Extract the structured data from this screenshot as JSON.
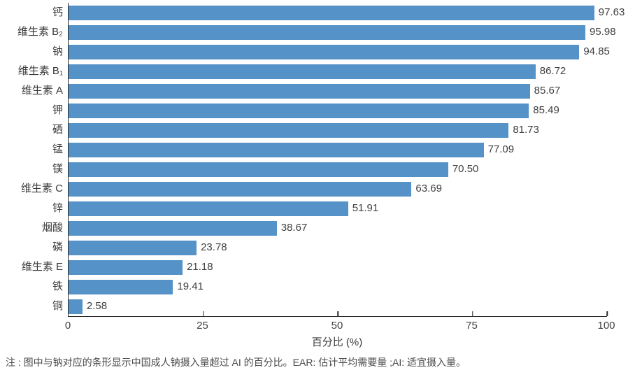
{
  "chart_data": {
    "type": "bar",
    "orientation": "horizontal",
    "categories": [
      "钙",
      "维生素 B₂",
      "钠",
      "维生素 B₁",
      "维生素 A",
      "钾",
      "硒",
      "锰",
      "镁",
      "维生素 C",
      "锌",
      "烟酸",
      "磷",
      "维生素 E",
      "铁",
      "铜"
    ],
    "values": [
      97.63,
      95.98,
      94.85,
      86.72,
      85.67,
      85.49,
      81.73,
      77.09,
      70.5,
      63.69,
      51.91,
      38.67,
      23.78,
      21.18,
      19.41,
      2.58
    ],
    "value_labels": [
      "97.63",
      "95.98",
      "94.85",
      "86.72",
      "85.67",
      "85.49",
      "81.73",
      "77.09",
      "70.50",
      "63.69",
      "51.91",
      "38.67",
      "23.78",
      "21.18",
      "19.41",
      "2.58"
    ],
    "title": "",
    "xlabel": "百分比 (%)",
    "ylabel": "",
    "xlim": [
      0,
      100
    ],
    "xticks": [
      "0",
      "25",
      "50",
      "75",
      "100"
    ],
    "xtick_values": [
      0,
      25,
      50,
      75,
      100
    ],
    "grid": false,
    "legend_position": "none",
    "bar_color": "#5592C7",
    "axis_color": "#2b2b2b"
  },
  "footnote": "注 : 图中与钠对应的条形显示中国成人钠摄入量超过 AI 的百分比。EAR: 估计平均需要量 ;AI: 适宜摄入量。"
}
